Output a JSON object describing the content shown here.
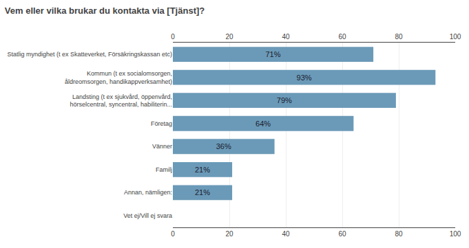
{
  "chart_data": {
    "type": "bar",
    "orientation": "horizontal",
    "title": "Vem eller vilka brukar du kontakta via [Tjänst]?",
    "categories": [
      "Statlig myndighet (t ex Skatteverket, Försäkringskassan etc)",
      "Kommun (t ex socialomsorgen,\nåldreomsorgen, handikappverksamhet)",
      "Landsting (t ex sjukvård, öppenvård,\nhörselcentral, syncentral, habiliterin...",
      "Företag",
      "Vänner",
      "Familj",
      "Annan, nämligen:",
      "Vet ej/Vill ej svara"
    ],
    "values": [
      71,
      93,
      79,
      64,
      36,
      21,
      21,
      0
    ],
    "value_labels": [
      "71%",
      "93%",
      "79%",
      "64%",
      "36%",
      "21%",
      "21%",
      null
    ],
    "data_labels": true,
    "color": "#6b9ab8",
    "xlim": [
      0,
      100
    ],
    "xticks": [
      0,
      20,
      40,
      60,
      80,
      100
    ],
    "grid": true
  }
}
